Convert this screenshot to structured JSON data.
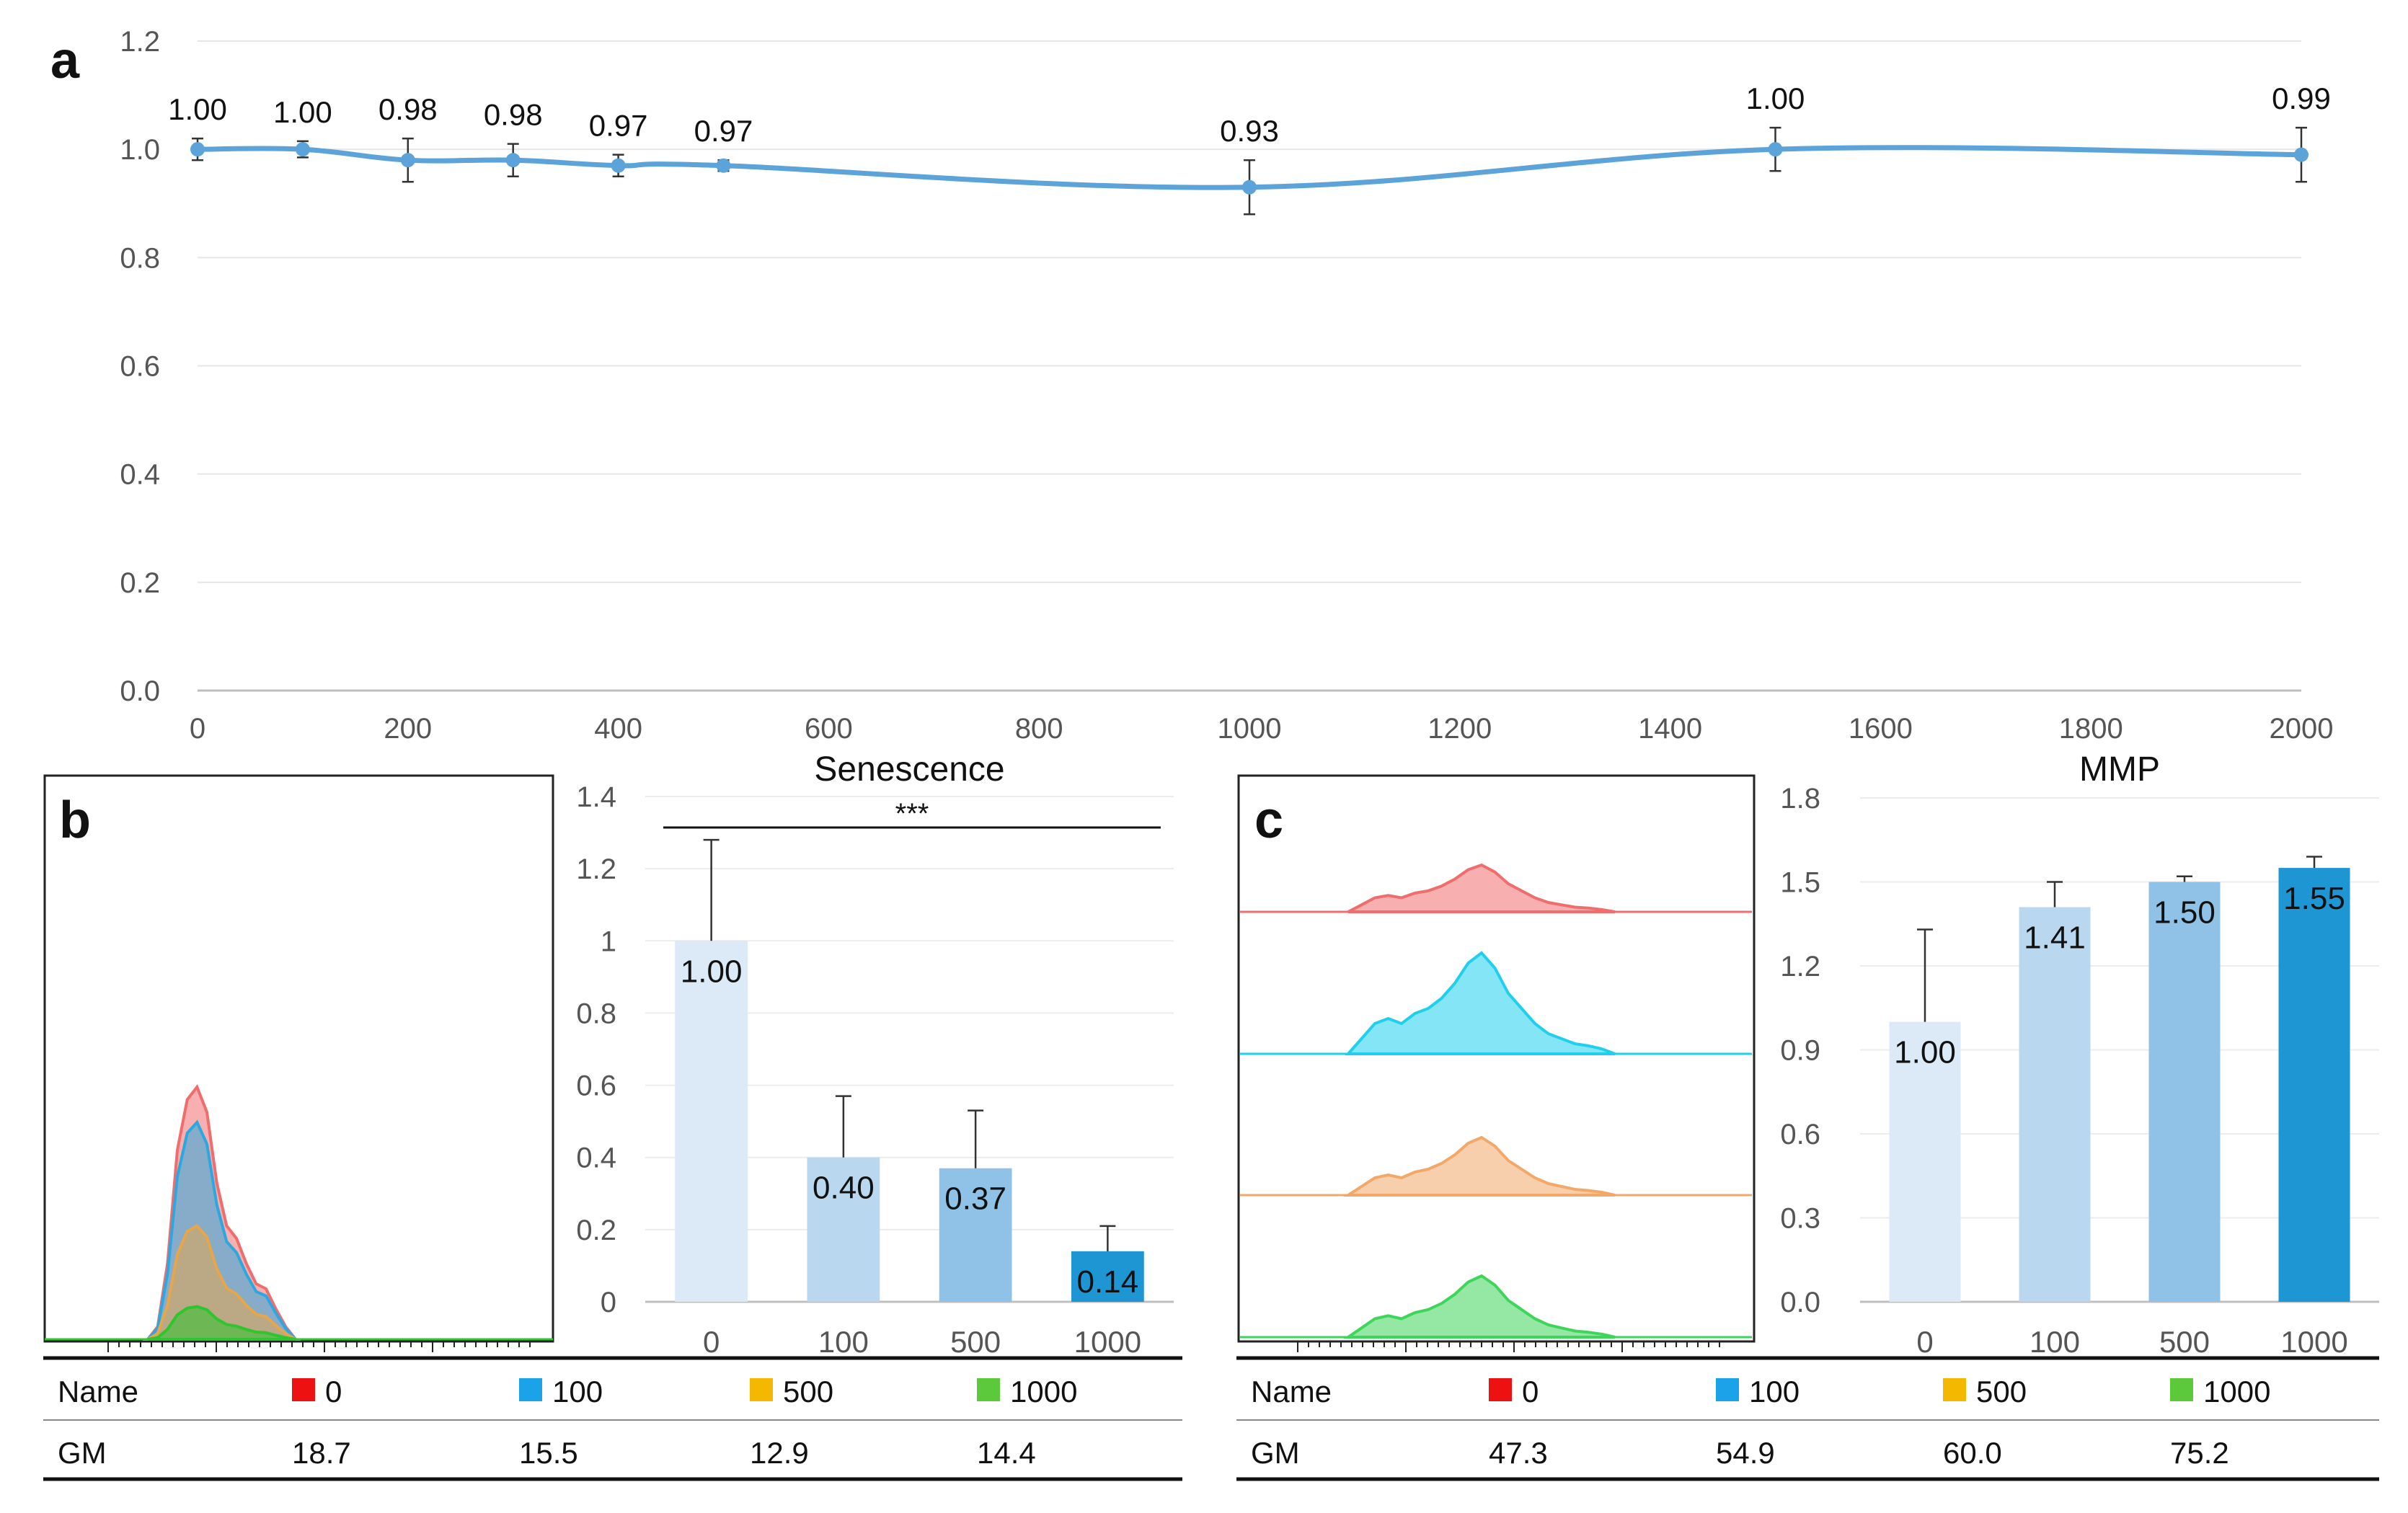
{
  "chart_data": [
    {
      "panel": "a",
      "type": "line",
      "title": "",
      "xlabel": "",
      "ylabel": "",
      "xlim": [
        0,
        2000
      ],
      "ylim": [
        0.0,
        1.2
      ],
      "x_ticks": [
        "0",
        "200",
        "400",
        "600",
        "800",
        "1000",
        "1200",
        "1400",
        "1600",
        "1800",
        "2000"
      ],
      "y_ticks": [
        "0.0",
        "0.2",
        "0.4",
        "0.6",
        "0.8",
        "1.0",
        "1.2"
      ],
      "x": [
        0,
        100,
        200,
        300,
        400,
        500,
        1000,
        1500,
        2000
      ],
      "values": [
        1.0,
        1.0,
        0.98,
        0.98,
        0.97,
        0.97,
        0.93,
        1.0,
        0.99
      ],
      "labels": [
        "1.00",
        "1.00",
        "0.98",
        "0.98",
        "0.97",
        "0.97",
        "0.93",
        "1.00",
        "0.99"
      ],
      "errors": [
        0.02,
        0.015,
        0.04,
        0.03,
        0.02,
        0.01,
        0.05,
        0.04,
        0.05
      ],
      "color": "#5ba3d9",
      "grid": true
    },
    {
      "panel": "b-bar",
      "type": "bar",
      "title": "Senescence",
      "annotation": "***",
      "categories": [
        "0",
        "100",
        "500",
        "1000"
      ],
      "values": [
        1.0,
        0.4,
        0.37,
        0.14
      ],
      "labels": [
        "1.00",
        "0.40",
        "0.37",
        "0.14"
      ],
      "errors": [
        0.28,
        0.17,
        0.16,
        0.07
      ],
      "ylim": [
        0,
        1.4
      ],
      "y_ticks": [
        "0",
        "0.2",
        "0.4",
        "0.6",
        "0.8",
        "1",
        "1.2",
        "1.4"
      ],
      "colors": [
        "#dce9f6",
        "#b9d7ee",
        "#8fc2e6",
        "#1e96d3"
      ],
      "grid": true
    },
    {
      "panel": "c-bar",
      "type": "bar",
      "title": "MMP",
      "categories": [
        "0",
        "100",
        "500",
        "1000"
      ],
      "values": [
        1.0,
        1.41,
        1.5,
        1.55
      ],
      "labels": [
        "1.00",
        "1.41",
        "1.50",
        "1.55"
      ],
      "errors": [
        0.33,
        0.09,
        0.02,
        0.04
      ],
      "ylim": [
        0,
        1.8
      ],
      "y_ticks": [
        "0.0",
        "0.3",
        "0.6",
        "0.9",
        "1.2",
        "1.5",
        "1.8"
      ],
      "colors": [
        "#dce9f6",
        "#b9d7ee",
        "#8fc2e6",
        "#1e96d3"
      ],
      "grid": true
    },
    {
      "panel": "b-histogram",
      "type": "area",
      "layout": "overlay",
      "series": [
        {
          "name": "0",
          "color": "#f06d6d",
          "height": 1.0
        },
        {
          "name": "100",
          "color": "#2aa9e0",
          "height": 0.86
        },
        {
          "name": "500",
          "color": "#e8a64a",
          "height": 0.45
        },
        {
          "name": "1000",
          "color": "#2ec52e",
          "height": 0.13
        }
      ]
    },
    {
      "panel": "c-histogram",
      "type": "area",
      "layout": "stacked",
      "series": [
        {
          "name": "0",
          "color": "#f06d6d"
        },
        {
          "name": "100",
          "color": "#1fd0ee"
        },
        {
          "name": "500",
          "color": "#f3a868"
        },
        {
          "name": "1000",
          "color": "#3ed65a"
        }
      ]
    }
  ],
  "panel_letters": {
    "a": "a",
    "b": "b",
    "c": "c"
  },
  "legend_b": {
    "name_header": "Name",
    "gm_header": "GM",
    "names": [
      "0",
      "100",
      "500",
      "1000"
    ],
    "colors": [
      "#ee1111",
      "#1aa3e8",
      "#f5b800",
      "#5cc93a"
    ],
    "gm": [
      "18.7",
      "15.5",
      "12.9",
      "14.4"
    ]
  },
  "legend_c": {
    "name_header": "Name",
    "gm_header": "GM",
    "names": [
      "0",
      "100",
      "500",
      "1000"
    ],
    "colors": [
      "#ee1111",
      "#1aa3e8",
      "#f5b800",
      "#5cc93a"
    ],
    "gm": [
      "47.3",
      "54.9",
      "60.0",
      "75.2"
    ]
  }
}
